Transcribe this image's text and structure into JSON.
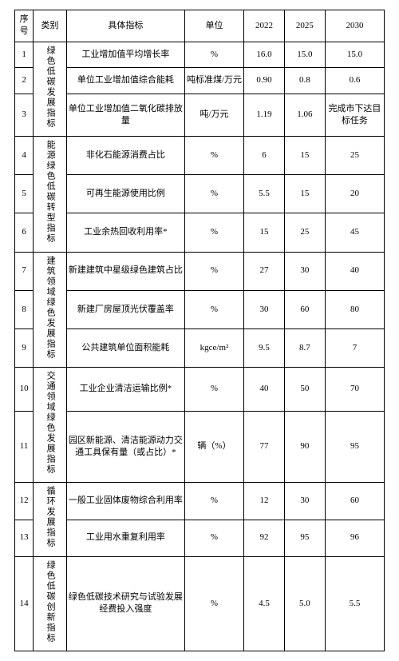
{
  "table": {
    "headers": {
      "seq": "序号",
      "category": "类别",
      "indicator": "具体指标",
      "unit": "单位",
      "y2022": "2022",
      "y2025": "2025",
      "y2030": "2030"
    },
    "categories": [
      {
        "label": "绿色低碳发展指标",
        "rowspan": 3
      },
      {
        "label": "能源绿色低碳转型指标",
        "rowspan": 3
      },
      {
        "label": "建筑领域绿色发展指标",
        "rowspan": 3
      },
      {
        "label": "交通领域绿色发展指标",
        "rowspan": 2
      },
      {
        "label": "循环发展指标",
        "rowspan": 2
      },
      {
        "label": "绿色低碳创新指标",
        "rowspan": 1
      }
    ],
    "rows": [
      {
        "seq": "1",
        "indicator": "工业增加值平均增长率",
        "unit": "%",
        "y2022": "16.0",
        "y2025": "15.0",
        "y2030": "15.0"
      },
      {
        "seq": "2",
        "indicator": "单位工业增加值综合能耗",
        "unit": "吨标准煤/万元",
        "y2022": "0.90",
        "y2025": "0.8",
        "y2030": "0.6"
      },
      {
        "seq": "3",
        "indicator": "单位工业增加值二氧化碳排放量",
        "unit": "吨/万元",
        "y2022": "1.19",
        "y2025": "1.06",
        "y2030": "完成市下达目标任务"
      },
      {
        "seq": "4",
        "indicator": "非化石能源消费占比",
        "unit": "%",
        "y2022": "6",
        "y2025": "15",
        "y2030": "25"
      },
      {
        "seq": "5",
        "indicator": "可再生能源使用比例",
        "unit": "%",
        "y2022": "5.5",
        "y2025": "15",
        "y2030": "20"
      },
      {
        "seq": "6",
        "indicator": "工业余热回收利用率*",
        "unit": "%",
        "y2022": "15",
        "y2025": "25",
        "y2030": "45"
      },
      {
        "seq": "7",
        "indicator": "新建建筑中星级绿色建筑占比",
        "unit": "%",
        "y2022": "27",
        "y2025": "30",
        "y2030": "40"
      },
      {
        "seq": "8",
        "indicator": "新建厂房屋顶光伏覆盖率",
        "unit": "%",
        "y2022": "30",
        "y2025": "60",
        "y2030": "80"
      },
      {
        "seq": "9",
        "indicator": "公共建筑单位面积能耗",
        "unit": "kgce/m²",
        "y2022": "9.5",
        "y2025": "8.7",
        "y2030": "7"
      },
      {
        "seq": "10",
        "indicator": "工业企业清洁运输比例*",
        "unit": "%",
        "y2022": "40",
        "y2025": "50",
        "y2030": "70"
      },
      {
        "seq": "11",
        "indicator": "园区新能源、清洁能源动力交通工具保有量（或占比）*",
        "unit": "辆（%）",
        "y2022": "77",
        "y2025": "90",
        "y2030": "95"
      },
      {
        "seq": "12",
        "indicator": "一般工业固体废物综合利用率",
        "unit": "%",
        "y2022": "12",
        "y2025": "30",
        "y2030": "60"
      },
      {
        "seq": "13",
        "indicator": "工业用水重复利用率",
        "unit": "%",
        "y2022": "92",
        "y2025": "95",
        "y2030": "96"
      },
      {
        "seq": "14",
        "indicator": "绿色低碳技术研究与试验发展经费投入强度",
        "unit": "%",
        "y2022": "4.5",
        "y2025": "5.0",
        "y2030": "5.5"
      }
    ]
  }
}
